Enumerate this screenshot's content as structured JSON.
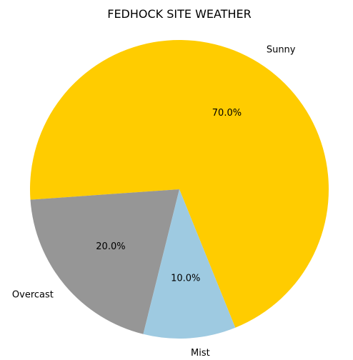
{
  "chart_data": {
    "type": "pie",
    "title": "FEDHOCK SITE WEATHER",
    "categories": [
      "Sunny",
      "Overcast",
      "Mist"
    ],
    "values": [
      70,
      20,
      10
    ],
    "percent_labels": [
      "70.0%",
      "20.0%",
      "10.0%"
    ],
    "colors": [
      "#ffcc00",
      "#969696",
      "#9ecae1"
    ],
    "start_angle_deg": -68,
    "direction": "counterclockwise",
    "legend": "none"
  }
}
